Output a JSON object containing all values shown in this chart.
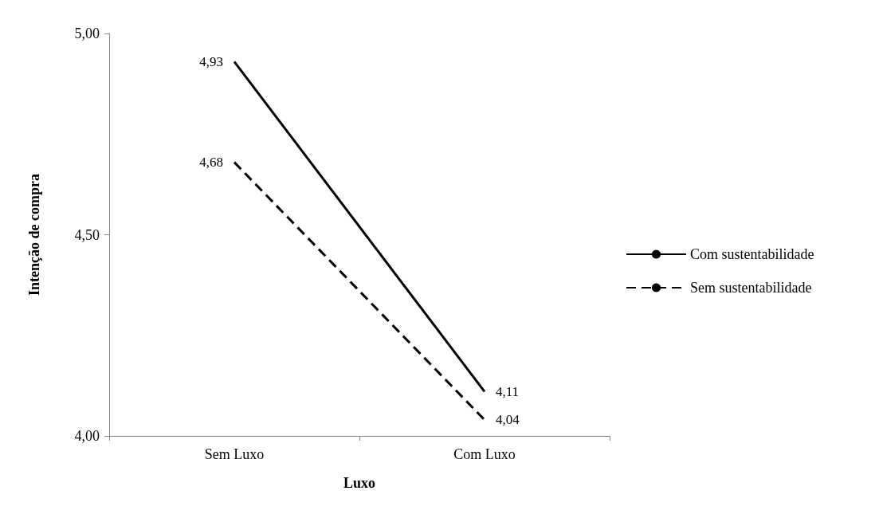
{
  "chart_data": {
    "type": "line",
    "xlabel": "Luxo",
    "ylabel": "Intenção de compra",
    "categories": [
      "Sem Luxo",
      "Com Luxo"
    ],
    "series": [
      {
        "name": "Com sustentabilidade",
        "color": "#000000",
        "values": [
          4.93,
          4.11
        ],
        "value_labels": [
          "4,93",
          "4,11"
        ],
        "line_style": "solid"
      },
      {
        "name": "Sem sustentabilidade",
        "color": "#000000",
        "values": [
          4.68,
          4.04
        ],
        "value_labels": [
          "4,68",
          "4,04"
        ],
        "line_style": "dashed"
      }
    ],
    "ylim": [
      4,
      5
    ],
    "yticks": [
      {
        "value": 4,
        "label": "4,00"
      },
      {
        "value": 4.5,
        "label": "4,50"
      },
      {
        "value": 5,
        "label": "5,00"
      }
    ],
    "grid": false,
    "legend": "right",
    "marker": "none"
  }
}
